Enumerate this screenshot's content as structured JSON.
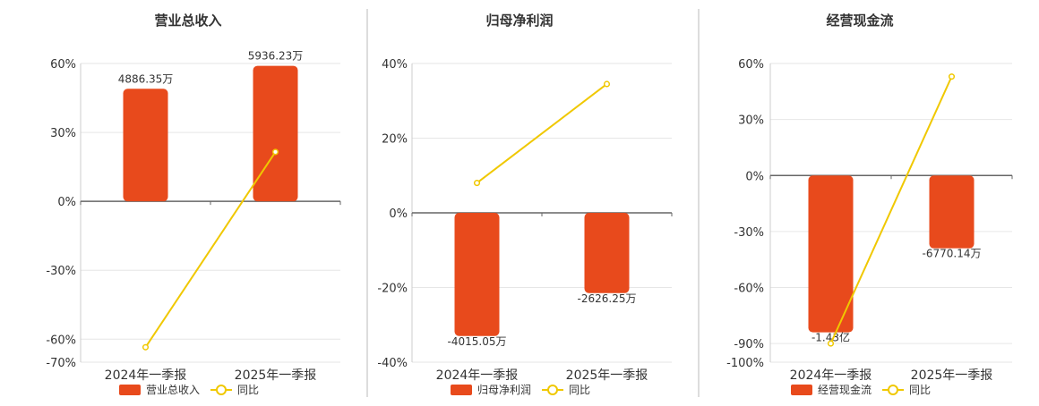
{
  "chart_data": [
    {
      "type": "bar",
      "title": "营业总收入",
      "categories": [
        "2024年一季报",
        "2025年一季报"
      ],
      "series": [
        {
          "name": "营业总收入",
          "kind": "bar",
          "values_pct": [
            49,
            59
          ],
          "labels": [
            "4886.35万",
            "5936.23万"
          ]
        },
        {
          "name": "同比",
          "kind": "line",
          "values": [
            -63.5,
            21.5
          ]
        }
      ],
      "ylim": [
        -70,
        60
      ],
      "ticks": [
        60,
        30,
        0,
        -30,
        -60,
        -70
      ],
      "tick_labels": [
        "60%",
        "30%",
        "0%",
        "-30%",
        "-60%",
        "-70%"
      ],
      "grid": true,
      "legend": "bottom",
      "legend_labels": [
        "营业总收入",
        "同比"
      ]
    },
    {
      "type": "bar",
      "title": "归母净利润",
      "categories": [
        "2024年一季报",
        "2025年一季报"
      ],
      "series": [
        {
          "name": "归母净利润",
          "kind": "bar",
          "values_pct": [
            -33,
            -21.5
          ],
          "labels": [
            "-4015.05万",
            "-2626.25万"
          ]
        },
        {
          "name": "同比",
          "kind": "line",
          "values": [
            8,
            34.5
          ]
        }
      ],
      "ylim": [
        -40,
        40
      ],
      "ticks": [
        40,
        20,
        0,
        -20,
        -40
      ],
      "tick_labels": [
        "40%",
        "20%",
        "0%",
        "-20%",
        "-40%"
      ],
      "grid": true,
      "legend": "bottom",
      "legend_labels": [
        "归母净利润",
        "同比"
      ]
    },
    {
      "type": "bar",
      "title": "经营现金流",
      "categories": [
        "2024年一季报",
        "2025年一季报"
      ],
      "series": [
        {
          "name": "经营现金流",
          "kind": "bar",
          "values_pct": [
            -84,
            -39
          ],
          "labels": [
            "-1.43亿",
            "-6770.14万"
          ]
        },
        {
          "name": "同比",
          "kind": "line",
          "values": [
            -90,
            53
          ]
        }
      ],
      "ylim": [
        -100,
        60
      ],
      "ticks": [
        60,
        30,
        0,
        -30,
        -60,
        -90,
        -100
      ],
      "tick_labels": [
        "60%",
        "30%",
        "0%",
        "-30%",
        "-60%",
        "-90%",
        "-100%"
      ],
      "grid": true,
      "legend": "bottom",
      "legend_labels": [
        "经营现金流",
        "同比"
      ]
    }
  ],
  "colors": {
    "bar": "#e84a1c",
    "line": "#f0c800",
    "grid": "#e6e6e6",
    "axis": "#666666",
    "divider": "#bbbbbb",
    "text": "#333333",
    "title": "#333333"
  }
}
